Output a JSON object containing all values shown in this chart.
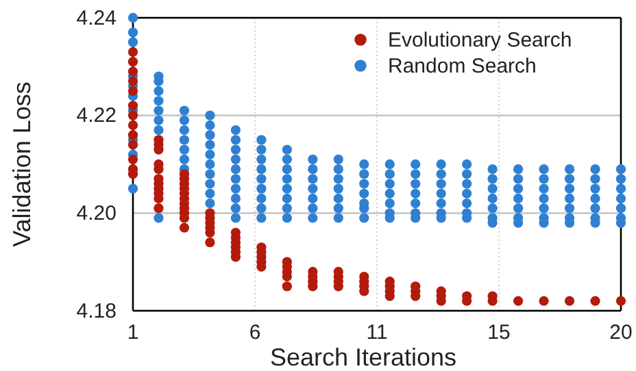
{
  "chart_data": {
    "type": "scatter",
    "xlabel": "Search Iterations",
    "ylabel": "Validation Loss",
    "xlim": [
      1,
      20
    ],
    "xticks": [
      1,
      {
        "value": 5.75,
        "label": "6"
      },
      {
        "value": 10.5,
        "label": "11"
      },
      {
        "value": 15.25,
        "label": "15"
      },
      20
    ],
    "ylim": [
      4.18,
      4.24
    ],
    "yticks": [
      4.18,
      {
        "value": 4.2,
        "label": "4.20"
      },
      4.22,
      4.24
    ],
    "grid": true,
    "legend": "top right",
    "marker": "circle",
    "series": [
      {
        "name": "Evolutionary Search",
        "color": "#b31b0c",
        "x": [
          1,
          1,
          1,
          1,
          1,
          1,
          1,
          1,
          1,
          1,
          1,
          1,
          1,
          2,
          2,
          2,
          2,
          2,
          2,
          2,
          2,
          2,
          2,
          2,
          3,
          3,
          3,
          3,
          3,
          3,
          3,
          3,
          3,
          3,
          3,
          4,
          4,
          4,
          4,
          4,
          4,
          5,
          5,
          5,
          5,
          5,
          5,
          6,
          6,
          6,
          6,
          6,
          7,
          7,
          7,
          7,
          7,
          8,
          8,
          8,
          8,
          9,
          9,
          9,
          9,
          10,
          10,
          10,
          10,
          11,
          11,
          11,
          11,
          12,
          12,
          12,
          13,
          13,
          13,
          14,
          14,
          15,
          15,
          16,
          17,
          18,
          19,
          20
        ],
        "values": [
          4.233,
          4.231,
          4.229,
          4.227,
          4.225,
          4.222,
          4.22,
          4.218,
          4.216,
          4.214,
          4.211,
          4.209,
          4.208,
          4.215,
          4.214,
          4.213,
          4.21,
          4.209,
          4.207,
          4.206,
          4.205,
          4.204,
          4.203,
          4.201,
          4.208,
          4.207,
          4.206,
          4.205,
          4.204,
          4.203,
          4.202,
          4.201,
          4.2,
          4.199,
          4.197,
          4.2,
          4.199,
          4.198,
          4.197,
          4.196,
          4.194,
          4.196,
          4.195,
          4.194,
          4.193,
          4.192,
          4.191,
          4.193,
          4.192,
          4.191,
          4.19,
          4.189,
          4.19,
          4.189,
          4.188,
          4.187,
          4.185,
          4.188,
          4.187,
          4.186,
          4.185,
          4.188,
          4.187,
          4.186,
          4.185,
          4.187,
          4.186,
          4.185,
          4.184,
          4.186,
          4.185,
          4.184,
          4.183,
          4.185,
          4.184,
          4.183,
          4.184,
          4.183,
          4.182,
          4.183,
          4.182,
          4.183,
          4.182,
          4.182,
          4.182,
          4.182,
          4.182,
          4.182
        ]
      },
      {
        "name": "Random Search",
        "color": "#2f80d2",
        "x": [
          1,
          1,
          1,
          1,
          1,
          1,
          1,
          1,
          1,
          1,
          2,
          2,
          2,
          2,
          2,
          2,
          2,
          2,
          3,
          3,
          3,
          3,
          3,
          3,
          3,
          4,
          4,
          4,
          4,
          4,
          4,
          4,
          4,
          4,
          4,
          5,
          5,
          5,
          5,
          5,
          5,
          5,
          5,
          5,
          5,
          6,
          6,
          6,
          6,
          6,
          6,
          6,
          6,
          6,
          7,
          7,
          7,
          7,
          7,
          7,
          7,
          7,
          8,
          8,
          8,
          8,
          8,
          8,
          8,
          9,
          9,
          9,
          9,
          9,
          9,
          9,
          10,
          10,
          10,
          10,
          10,
          10,
          10,
          11,
          11,
          11,
          11,
          11,
          11,
          11,
          12,
          12,
          12,
          12,
          12,
          12,
          12,
          13,
          13,
          13,
          13,
          13,
          13,
          13,
          14,
          14,
          14,
          14,
          14,
          14,
          14,
          15,
          15,
          15,
          15,
          15,
          15,
          15,
          16,
          16,
          16,
          16,
          16,
          16,
          16,
          17,
          17,
          17,
          17,
          17,
          17,
          17,
          18,
          18,
          18,
          18,
          18,
          18,
          18,
          19,
          19,
          19,
          19,
          19,
          19,
          19,
          20,
          20,
          20,
          20,
          20,
          20,
          20
        ],
        "values": [
          4.24,
          4.237,
          4.235,
          4.228,
          4.226,
          4.224,
          4.221,
          4.215,
          4.212,
          4.205,
          4.228,
          4.227,
          4.225,
          4.223,
          4.221,
          4.219,
          4.217,
          4.199,
          4.221,
          4.219,
          4.217,
          4.215,
          4.213,
          4.211,
          4.209,
          4.22,
          4.218,
          4.216,
          4.214,
          4.212,
          4.21,
          4.208,
          4.206,
          4.204,
          4.202,
          4.217,
          4.215,
          4.213,
          4.211,
          4.209,
          4.207,
          4.205,
          4.203,
          4.201,
          4.199,
          4.215,
          4.213,
          4.211,
          4.209,
          4.207,
          4.205,
          4.203,
          4.201,
          4.199,
          4.213,
          4.211,
          4.209,
          4.207,
          4.205,
          4.203,
          4.201,
          4.199,
          4.211,
          4.209,
          4.207,
          4.205,
          4.203,
          4.201,
          4.199,
          4.211,
          4.209,
          4.207,
          4.205,
          4.203,
          4.201,
          4.199,
          4.21,
          4.208,
          4.206,
          4.204,
          4.202,
          4.201,
          4.199,
          4.21,
          4.208,
          4.206,
          4.204,
          4.202,
          4.2,
          4.199,
          4.21,
          4.208,
          4.206,
          4.204,
          4.202,
          4.2,
          4.199,
          4.21,
          4.208,
          4.206,
          4.204,
          4.202,
          4.2,
          4.199,
          4.21,
          4.208,
          4.206,
          4.204,
          4.202,
          4.2,
          4.199,
          4.209,
          4.207,
          4.205,
          4.203,
          4.201,
          4.199,
          4.198,
          4.209,
          4.207,
          4.205,
          4.203,
          4.201,
          4.199,
          4.198,
          4.209,
          4.207,
          4.205,
          4.203,
          4.201,
          4.199,
          4.198,
          4.209,
          4.207,
          4.205,
          4.203,
          4.201,
          4.199,
          4.198,
          4.209,
          4.207,
          4.205,
          4.203,
          4.201,
          4.199,
          4.198,
          4.209,
          4.207,
          4.205,
          4.203,
          4.201,
          4.199,
          4.198
        ]
      }
    ]
  }
}
